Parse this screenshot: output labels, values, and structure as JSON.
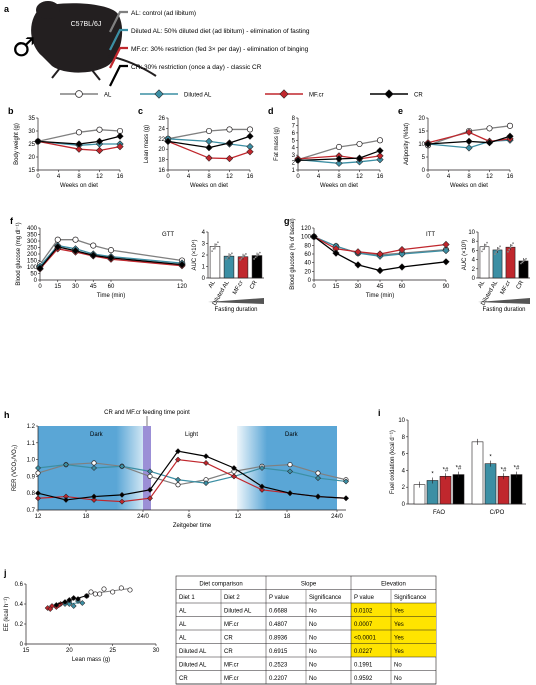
{
  "panel_labels": {
    "a": "a",
    "b": "b",
    "c": "c",
    "d": "d",
    "e": "e",
    "f": "f",
    "g": "g",
    "h": "h",
    "i": "i",
    "j": "j"
  },
  "colors": {
    "AL": "#ffffff",
    "Diluted AL": "#3c8fa4",
    "MF.cr": "#c0272d",
    "CR": "#000000",
    "AL_line": "#808080",
    "dark_band": "#5aa6d6",
    "light_band": "#ffffff",
    "highlight": "#ffe400"
  },
  "panel_a": {
    "mouse_label": "C57BL/6J",
    "sex_symbol": "♂",
    "groups": [
      {
        "text": "AL: control (ad libitum)",
        "color": "#808080"
      },
      {
        "text": "Diluted AL: 50% diluted diet (ad libitum) - elimination of fasting",
        "color": "#3c8fa4"
      },
      {
        "text": "MF.cr: 30% restriction (fed 3× per day) - elimination of binging",
        "color": "#c0272d"
      },
      {
        "text": "CR: 30% restriction (once a day) - classic CR",
        "color": "#000000"
      }
    ]
  },
  "legend": [
    "AL",
    "Diluted AL",
    "MF.cr",
    "CR"
  ],
  "chart_data": [
    {
      "id": "b",
      "type": "line",
      "xlabel": "Weeks on diet",
      "ylabel": "Body weight (g)",
      "x": [
        0,
        8,
        12,
        16
      ],
      "xticks": [
        0,
        4,
        8,
        12,
        16
      ],
      "yticks": [
        15,
        20,
        25,
        30,
        35
      ],
      "ylim": [
        15,
        35
      ],
      "series": [
        {
          "name": "AL",
          "values": [
            26,
            29.5,
            30.5,
            30
          ]
        },
        {
          "name": "Diluted AL",
          "values": [
            26,
            24.5,
            25,
            25
          ]
        },
        {
          "name": "MF.cr",
          "values": [
            26,
            23,
            22.5,
            24
          ]
        },
        {
          "name": "CR",
          "values": [
            26,
            25,
            26,
            28
          ]
        }
      ]
    },
    {
      "id": "c",
      "type": "line",
      "xlabel": "Weeks on diet",
      "ylabel": "Lean mass (g)",
      "x": [
        0,
        8,
        12,
        16
      ],
      "xticks": [
        0,
        4,
        8,
        12,
        16
      ],
      "yticks": [
        16,
        18,
        20,
        22,
        24,
        26
      ],
      "ylim": [
        16,
        26
      ],
      "series": [
        {
          "name": "AL",
          "values": [
            22,
            23.5,
            23.8,
            23.8
          ]
        },
        {
          "name": "Diluted AL",
          "values": [
            22,
            21.5,
            21,
            20.5
          ]
        },
        {
          "name": "MF.cr",
          "values": [
            21.5,
            18.3,
            18.2,
            19.5
          ]
        },
        {
          "name": "CR",
          "values": [
            21.5,
            20.3,
            21.2,
            22.5
          ]
        }
      ]
    },
    {
      "id": "d",
      "type": "line",
      "xlabel": "Weeks on diet",
      "ylabel": "Fat mass (g)",
      "x": [
        0,
        8,
        12,
        16
      ],
      "xticks": [
        0,
        4,
        8,
        12,
        16
      ],
      "yticks": [
        1,
        2,
        3,
        4,
        5,
        6,
        7,
        8
      ],
      "ylim": [
        1,
        8
      ],
      "series": [
        {
          "name": "AL",
          "values": [
            2.4,
            4.1,
            4.5,
            5
          ]
        },
        {
          "name": "Diluted AL",
          "values": [
            2.4,
            1.9,
            2.1,
            2.4
          ]
        },
        {
          "name": "MF.cr",
          "values": [
            2.5,
            2.9,
            2.5,
            2.9
          ]
        },
        {
          "name": "CR",
          "values": [
            2.3,
            2.5,
            2.6,
            3.6
          ]
        }
      ]
    },
    {
      "id": "e",
      "type": "line",
      "xlabel": "Weeks on diet",
      "ylabel": "Adiposity (%fat)",
      "x": [
        0,
        8,
        12,
        16
      ],
      "xticks": [
        0,
        4,
        8,
        12,
        16
      ],
      "yticks": [
        0,
        5,
        10,
        15,
        20
      ],
      "ylim": [
        0,
        20
      ],
      "series": [
        {
          "name": "AL",
          "values": [
            9.5,
            15,
            16,
            17
          ]
        },
        {
          "name": "Diluted AL",
          "values": [
            10,
            8.5,
            11,
            11.5
          ]
        },
        {
          "name": "MF.cr",
          "values": [
            10.5,
            14.5,
            11,
            12
          ]
        },
        {
          "name": "CR",
          "values": [
            10,
            11,
            10.5,
            13
          ]
        }
      ]
    },
    {
      "id": "f",
      "type": "line",
      "title": "GTT",
      "xlabel": "Time (min)",
      "ylabel": "Blood glucose (mg dl⁻¹)",
      "x": [
        0,
        15,
        30,
        45,
        60,
        120
      ],
      "xticks": [
        0,
        15,
        30,
        45,
        60,
        120
      ],
      "yticks": [
        0,
        50,
        100,
        150,
        200,
        250,
        300,
        350,
        400
      ],
      "ylim": [
        0,
        400
      ],
      "series": [
        {
          "name": "AL",
          "values": [
            120,
            310,
            310,
            265,
            230,
            150
          ]
        },
        {
          "name": "Diluted AL",
          "values": [
            105,
            265,
            240,
            200,
            180,
            130
          ]
        },
        {
          "name": "MF.cr",
          "values": [
            85,
            240,
            215,
            185,
            160,
            110
          ]
        },
        {
          "name": "CR",
          "values": [
            90,
            255,
            225,
            190,
            170,
            118
          ]
        }
      ]
    },
    {
      "id": "f_auc",
      "type": "bar",
      "ylabel": "AUC (×10⁴)",
      "categories": [
        "AL",
        "Diluted AL",
        "MF.cr",
        "CR"
      ],
      "values": [
        2.75,
        1.9,
        1.85,
        1.95
      ],
      "ylim": [
        0,
        4
      ],
      "yticks": [
        0,
        1,
        2,
        3,
        4
      ],
      "xcaption": "Fasting duration"
    },
    {
      "id": "g",
      "type": "line",
      "title": "ITT",
      "xlabel": "Time (min)",
      "ylabel": "Blood glucose (% of basal)",
      "x": [
        0,
        15,
        30,
        45,
        60,
        90
      ],
      "xticks": [
        0,
        15,
        30,
        45,
        60,
        90
      ],
      "yticks": [
        0,
        20,
        40,
        60,
        80,
        100,
        120
      ],
      "ylim": [
        0,
        120
      ],
      "series": [
        {
          "name": "AL",
          "values": [
            100,
            78,
            62,
            58,
            62,
            70
          ]
        },
        {
          "name": "Diluted AL",
          "values": [
            100,
            78,
            62,
            55,
            60,
            68
          ]
        },
        {
          "name": "MF.cr",
          "values": [
            100,
            72,
            65,
            60,
            70,
            82
          ]
        },
        {
          "name": "CR",
          "values": [
            100,
            62,
            35,
            22,
            30,
            42
          ]
        }
      ]
    },
    {
      "id": "g_auc",
      "type": "bar",
      "ylabel": "AUC (×10³)",
      "categories": [
        "AL",
        "Diluted AL",
        "MF.cr",
        "CR"
      ],
      "values": [
        6.8,
        6.1,
        6.7,
        3.7
      ],
      "ylim": [
        0,
        10
      ],
      "yticks": [
        0,
        2,
        4,
        6,
        8,
        10
      ],
      "xcaption": "Fasting duration"
    },
    {
      "id": "h",
      "type": "line",
      "xlabel": "Zeitgeber time",
      "ylabel": "RER (VCO₂/VO₂)",
      "xticks": [
        "12",
        "18",
        "24/0",
        "6",
        "12",
        "18",
        "24/0"
      ],
      "yticks": [
        0.7,
        0.8,
        0.9,
        1.0,
        1.1,
        1.2
      ],
      "ylim": [
        0.7,
        1.2
      ],
      "annotations": [
        "Dark",
        "Light",
        "Dark",
        "CR and MF.cr feeding time point"
      ],
      "series": [
        {
          "name": "AL",
          "values": [
            0.92,
            0.97,
            0.98,
            0.96,
            0.9,
            0.85,
            0.88,
            0.93,
            0.96,
            0.97,
            0.92,
            0.88
          ]
        },
        {
          "name": "Diluted AL",
          "values": [
            0.95,
            0.97,
            0.95,
            0.96,
            0.93,
            0.88,
            0.86,
            0.9,
            0.95,
            0.93,
            0.89,
            0.87
          ]
        },
        {
          "name": "MF.cr",
          "values": [
            0.77,
            0.78,
            0.76,
            0.75,
            0.77,
            1.0,
            0.98,
            0.9,
            0.82,
            0.8,
            0.78,
            0.77
          ]
        },
        {
          "name": "CR",
          "values": [
            0.8,
            0.76,
            0.78,
            0.79,
            0.82,
            1.05,
            1.02,
            0.95,
            0.84,
            0.8,
            0.78,
            0.77
          ]
        }
      ]
    },
    {
      "id": "i",
      "type": "bar",
      "ylabel": "Fuel oxidation (kcal d⁻¹)",
      "groups": [
        "FAO",
        "C/PO"
      ],
      "categories": [
        "AL",
        "Diluted AL",
        "MF.cr",
        "CR"
      ],
      "yticks": [
        0,
        2,
        4,
        6,
        8,
        10
      ],
      "ylim": [
        0,
        10
      ],
      "series": [
        {
          "name": "FAO",
          "values": [
            2.3,
            2.8,
            3.3,
            3.5
          ]
        },
        {
          "name": "C/PO",
          "values": [
            7.4,
            4.8,
            3.3,
            3.5
          ]
        }
      ],
      "annotations": [
        "*#",
        "*",
        "*#",
        "*#"
      ]
    },
    {
      "id": "j",
      "type": "scatter",
      "xlabel": "Lean mass (g)",
      "ylabel": "EE (kcal h⁻¹)",
      "xticks": [
        15,
        20,
        25,
        30
      ],
      "yticks": [
        0,
        0.2,
        0.4,
        0.6
      ],
      "xlim": [
        15,
        30
      ],
      "ylim": [
        0,
        0.6
      ],
      "series": [
        {
          "name": "AL",
          "points": [
            [
              22,
              0.48
            ],
            [
              22.5,
              0.52
            ],
            [
              23,
              0.5
            ],
            [
              24,
              0.55
            ],
            [
              25,
              0.52
            ],
            [
              26,
              0.56
            ],
            [
              27,
              0.54
            ],
            [
              23.5,
              0.5
            ]
          ]
        },
        {
          "name": "Diluted AL",
          "points": [
            [
              19.5,
              0.4
            ],
            [
              20,
              0.42
            ],
            [
              20.5,
              0.38
            ],
            [
              21,
              0.43
            ],
            [
              21.5,
              0.41
            ],
            [
              20,
              0.4
            ]
          ]
        },
        {
          "name": "MF.cr",
          "points": [
            [
              17.5,
              0.36
            ],
            [
              18,
              0.38
            ],
            [
              18.5,
              0.37
            ],
            [
              19,
              0.4
            ],
            [
              17.8,
              0.35
            ],
            [
              18.8,
              0.39
            ]
          ]
        },
        {
          "name": "CR",
          "points": [
            [
              18.5,
              0.39
            ],
            [
              19.5,
              0.42
            ],
            [
              20,
              0.44
            ],
            [
              21,
              0.45
            ],
            [
              22,
              0.48
            ],
            [
              20.5,
              0.46
            ]
          ]
        }
      ]
    }
  ],
  "table": {
    "header_groups": [
      "Diet comparison",
      "Slope",
      "Elevation"
    ],
    "columns": [
      "Diet 1",
      "Diet 2",
      "P value",
      "Significance",
      "P value",
      "Significance"
    ],
    "rows": [
      [
        "AL",
        "Diluted AL",
        "0.6688",
        "No",
        "0.0102",
        "Yes"
      ],
      [
        "AL",
        "MF.cr",
        "0.4807",
        "No",
        "0.0007",
        "Yes"
      ],
      [
        "AL",
        "CR",
        "0.8936",
        "No",
        "<0.0001",
        "Yes"
      ],
      [
        "Diluted AL",
        "CR",
        "0.6915",
        "No",
        "0.0227",
        "Yes"
      ],
      [
        "Diluted AL",
        "MF.cr",
        "0.2523",
        "No",
        "0.1991",
        "No"
      ],
      [
        "CR",
        "MF.cr",
        "0.2207",
        "No",
        "0.9592",
        "No"
      ]
    ],
    "highlight_rows": [
      0,
      1,
      2,
      3
    ]
  }
}
